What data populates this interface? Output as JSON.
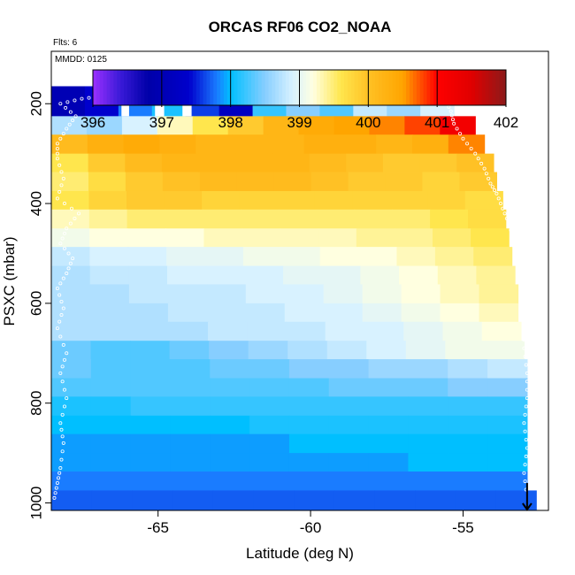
{
  "chart_data": {
    "type": "heatmap",
    "title": "ORCAS RF06 CO2_NOAA",
    "subtitle_flights": "Flts: 6",
    "subtitle_date": "MMDD: 0125",
    "xlabel": "Latitude (deg N)",
    "ylabel": "PSXC (mbar)",
    "xlim": [
      -68.5,
      -52.2
    ],
    "ylim": [
      1015,
      95
    ],
    "y_reversed": true,
    "x_ticks": [
      -65,
      -60,
      -55
    ],
    "y_ticks": [
      200,
      400,
      600,
      800,
      1000
    ],
    "colorbar": {
      "min": 396,
      "max": 402,
      "ticks": [
        396,
        397,
        398,
        399,
        400,
        401,
        402
      ],
      "stops": [
        {
          "v": 396.0,
          "c": "#9b30ff"
        },
        {
          "v": 396.4,
          "c": "#3a1ad8"
        },
        {
          "v": 396.8,
          "c": "#0000a8"
        },
        {
          "v": 397.4,
          "c": "#0000cd"
        },
        {
          "v": 397.8,
          "c": "#1a7cff"
        },
        {
          "v": 398.0,
          "c": "#00bfff"
        },
        {
          "v": 398.5,
          "c": "#87ceff"
        },
        {
          "v": 398.9,
          "c": "#d8f2ff"
        },
        {
          "v": 399.2,
          "c": "#ffffe0"
        },
        {
          "v": 399.6,
          "c": "#ffe64d"
        },
        {
          "v": 400.0,
          "c": "#ffc125"
        },
        {
          "v": 400.5,
          "c": "#ffa500"
        },
        {
          "v": 401.0,
          "c": "#ff0000"
        },
        {
          "v": 401.5,
          "c": "#e00000"
        },
        {
          "v": 402.0,
          "c": "#8b1a1a"
        }
      ]
    },
    "rows": [
      {
        "pmin": 165,
        "pmax": 225,
        "latmin": -68.5,
        "latmax": -55.3,
        "values": [
          397.0,
          397.4,
          397.8,
          398.1,
          397.6,
          397.2,
          398.2,
          398.5,
          398.3,
          398.8,
          398.6,
          398.9
        ]
      },
      {
        "pmin": 225,
        "pmax": 262,
        "latmin": -68.5,
        "latmax": -54.6,
        "values": [
          398.7,
          398.6,
          398.9,
          399.3,
          399.6,
          399.9,
          400.2,
          400.4,
          400.5,
          400.6,
          400.8,
          401.2
        ]
      },
      {
        "pmin": 262,
        "pmax": 300,
        "latmin": -68.5,
        "latmax": -54.3,
        "values": [
          400.1,
          400.3,
          400.4,
          400.3,
          400.2,
          400.2,
          400.2,
          400.3,
          400.3,
          400.2,
          400.3,
          400.6
        ]
      },
      {
        "pmin": 300,
        "pmax": 337,
        "latmin": -68.5,
        "latmax": -54.0,
        "values": [
          399.6,
          399.9,
          400.1,
          400.2,
          400.2,
          400.2,
          400.2,
          400.1,
          400.0,
          399.9,
          399.9,
          400.0
        ]
      },
      {
        "pmin": 337,
        "pmax": 375,
        "latmin": -68.5,
        "latmax": -53.9,
        "values": [
          399.5,
          399.7,
          399.9,
          400.0,
          400.1,
          400.1,
          400.1,
          400.0,
          399.9,
          399.9,
          399.8,
          399.9
        ]
      },
      {
        "pmin": 375,
        "pmax": 412,
        "latmin": -68.5,
        "latmax": -53.7,
        "values": [
          399.6,
          399.8,
          399.9,
          399.9,
          399.8,
          399.8,
          399.8,
          399.8,
          399.8,
          399.8,
          399.8,
          399.7
        ]
      },
      {
        "pmin": 412,
        "pmax": 450,
        "latmin": -68.5,
        "latmax": -53.6,
        "values": [
          399.3,
          399.4,
          399.5,
          399.5,
          399.5,
          399.5,
          399.5,
          399.5,
          399.5,
          399.5,
          399.6,
          399.7
        ]
      },
      {
        "pmin": 450,
        "pmax": 487,
        "latmin": -68.5,
        "latmax": -53.5,
        "values": [
          399.1,
          399.2,
          399.2,
          399.2,
          399.3,
          399.3,
          399.3,
          399.3,
          399.4,
          399.4,
          399.5,
          399.6
        ]
      },
      {
        "pmin": 487,
        "pmax": 525,
        "latmin": -68.5,
        "latmax": -53.4,
        "values": [
          398.8,
          398.9,
          398.9,
          399.0,
          399.0,
          399.1,
          399.1,
          399.2,
          399.2,
          399.3,
          399.4,
          399.5
        ]
      },
      {
        "pmin": 525,
        "pmax": 562,
        "latmin": -68.5,
        "latmax": -53.3,
        "values": [
          398.7,
          398.8,
          398.8,
          398.9,
          398.9,
          398.9,
          399.0,
          399.0,
          399.1,
          399.2,
          399.3,
          399.4
        ]
      },
      {
        "pmin": 562,
        "pmax": 600,
        "latmin": -68.5,
        "latmax": -53.2,
        "values": [
          398.7,
          398.7,
          398.8,
          398.8,
          398.8,
          398.9,
          398.9,
          399.0,
          399.1,
          399.2,
          399.3,
          399.4
        ]
      },
      {
        "pmin": 600,
        "pmax": 637,
        "latmin": -68.5,
        "latmax": -53.2,
        "values": [
          398.7,
          398.7,
          398.7,
          398.8,
          398.8,
          398.8,
          398.9,
          398.9,
          399.0,
          399.1,
          399.2,
          399.3
        ]
      },
      {
        "pmin": 637,
        "pmax": 675,
        "latmin": -68.5,
        "latmax": -53.1,
        "values": [
          398.7,
          398.7,
          398.7,
          398.7,
          398.8,
          398.8,
          398.8,
          398.9,
          398.9,
          399.0,
          399.1,
          399.2
        ]
      },
      {
        "pmin": 675,
        "pmax": 712,
        "latmin": -68.5,
        "latmax": -53.0,
        "values": [
          398.4,
          398.3,
          398.3,
          398.4,
          398.5,
          398.6,
          398.7,
          398.8,
          398.9,
          399.0,
          399.1,
          399.1
        ]
      },
      {
        "pmin": 712,
        "pmax": 750,
        "latmin": -68.5,
        "latmax": -52.9,
        "values": [
          398.4,
          398.3,
          398.3,
          398.3,
          398.4,
          398.4,
          398.5,
          398.5,
          398.6,
          398.6,
          398.7,
          398.8
        ]
      },
      {
        "pmin": 750,
        "pmax": 787,
        "latmin": -68.5,
        "latmax": -52.9,
        "values": [
          398.3,
          398.3,
          398.3,
          398.3,
          398.3,
          398.3,
          398.3,
          398.4,
          398.4,
          398.4,
          398.5,
          398.5
        ]
      },
      {
        "pmin": 787,
        "pmax": 825,
        "latmin": -68.5,
        "latmax": -52.9,
        "values": [
          398.1,
          398.1,
          398.2,
          398.2,
          398.2,
          398.2,
          398.2,
          398.2,
          398.2,
          398.2,
          398.2,
          398.2
        ]
      },
      {
        "pmin": 825,
        "pmax": 862,
        "latmin": -68.5,
        "latmax": -52.9,
        "values": [
          398.0,
          398.0,
          398.0,
          398.0,
          398.0,
          398.1,
          398.1,
          398.1,
          398.1,
          398.1,
          398.1,
          398.1
        ]
      },
      {
        "pmin": 862,
        "pmax": 900,
        "latmin": -68.5,
        "latmax": -52.9,
        "values": [
          397.9,
          397.9,
          397.9,
          397.9,
          397.9,
          397.9,
          398.0,
          398.0,
          398.0,
          398.0,
          398.0,
          398.0
        ]
      },
      {
        "pmin": 900,
        "pmax": 937,
        "latmin": -68.5,
        "latmax": -52.9,
        "values": [
          397.9,
          397.9,
          397.9,
          397.9,
          397.9,
          397.9,
          397.9,
          397.9,
          397.9,
          398.0,
          398.0,
          398.0
        ]
      },
      {
        "pmin": 937,
        "pmax": 975,
        "latmin": -68.5,
        "latmax": -52.9,
        "values": [
          397.8,
          397.8,
          397.8,
          397.8,
          397.8,
          397.8,
          397.8,
          397.8,
          397.8,
          397.8,
          397.8,
          397.8
        ]
      },
      {
        "pmin": 975,
        "pmax": 1015,
        "latmin": -68.5,
        "latmax": -52.6,
        "values": [
          397.7,
          397.7,
          397.7,
          397.7,
          397.7,
          397.7,
          397.7,
          397.7,
          397.7,
          397.7,
          397.7,
          397.7
        ]
      }
    ],
    "gaps": [
      {
        "pmin": 165,
        "pmax": 225,
        "latmin": -65.1,
        "latmax": -64.8
      },
      {
        "pmin": 165,
        "pmax": 225,
        "latmin": -64.2,
        "latmax": -63.9
      },
      {
        "pmin": 165,
        "pmax": 225,
        "latmin": -66.2,
        "latmax": -65.95
      }
    ],
    "flight_track": [
      [
        -68.4,
        990
      ],
      [
        -68.3,
        960
      ],
      [
        -68.2,
        930
      ],
      [
        -68.1,
        880
      ],
      [
        -68.2,
        840
      ],
      [
        -68.0,
        790
      ],
      [
        -68.2,
        740
      ],
      [
        -68.0,
        700
      ],
      [
        -68.3,
        650
      ],
      [
        -68.1,
        610
      ],
      [
        -68.3,
        570
      ],
      [
        -68.0,
        540
      ],
      [
        -67.8,
        510
      ],
      [
        -68.2,
        480
      ],
      [
        -68.0,
        450
      ],
      [
        -67.6,
        420
      ],
      [
        -68.3,
        390
      ],
      [
        -68.1,
        350
      ],
      [
        -68.3,
        310
      ],
      [
        -68.3,
        280
      ],
      [
        -68.0,
        250
      ],
      [
        -67.7,
        225
      ],
      [
        -68.2,
        200
      ],
      [
        -67.5,
        190
      ],
      [
        -66.8,
        185
      ],
      [
        -66.0,
        185
      ],
      [
        -65.2,
        185
      ],
      [
        -64.4,
        185
      ],
      [
        -63.5,
        185
      ],
      [
        -62.6,
        185
      ],
      [
        -61.8,
        185
      ],
      [
        -61.0,
        185
      ],
      [
        -60.2,
        185
      ],
      [
        -59.4,
        185
      ],
      [
        -58.6,
        185
      ],
      [
        -57.8,
        185
      ],
      [
        -57.0,
        185
      ],
      [
        -56.2,
        185
      ],
      [
        -55.6,
        190
      ],
      [
        -55.4,
        215
      ],
      [
        -55.3,
        240
      ],
      [
        -55.0,
        270
      ],
      [
        -54.6,
        300
      ],
      [
        -54.3,
        330
      ],
      [
        -54.1,
        360
      ],
      [
        -53.9,
        380
      ],
      [
        -53.7,
        410
      ],
      [
        -53.5,
        440
      ],
      [
        -53.3,
        480
      ],
      [
        -53.2,
        520
      ],
      [
        -53.1,
        560
      ],
      [
        -53.1,
        600
      ],
      [
        -53.0,
        640
      ],
      [
        -53.0,
        690
      ],
      [
        -52.9,
        740
      ],
      [
        -52.9,
        790
      ],
      [
        -53.0,
        840
      ],
      [
        -52.9,
        890
      ],
      [
        -53.0,
        940
      ],
      [
        -52.9,
        990
      ]
    ],
    "arrow": {
      "lat": -52.9,
      "p_start": 960,
      "p_end": 1015
    }
  }
}
